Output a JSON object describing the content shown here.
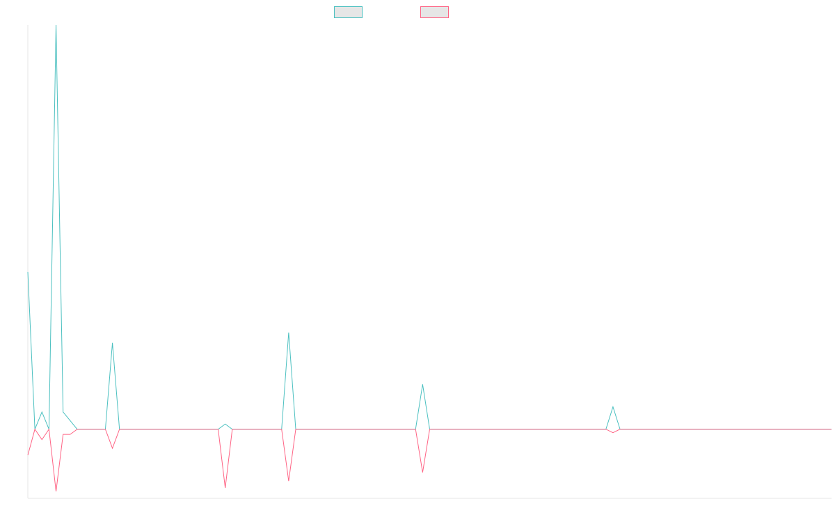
{
  "chart_data": {
    "type": "line",
    "title": "",
    "xlabel": "",
    "ylabel": "",
    "grid": false,
    "tick_labels_visible": false,
    "legend_placement": "top-center",
    "ylim": [
      -0.4,
      2.34
    ],
    "x": [
      0,
      1,
      2,
      3,
      4,
      5,
      6,
      7,
      8,
      9,
      10,
      11,
      12,
      13,
      14,
      15,
      16,
      17,
      18,
      19,
      20,
      21,
      22,
      23,
      24,
      25,
      26,
      27,
      28,
      29,
      30,
      31,
      32,
      33,
      34,
      35,
      36,
      37,
      38,
      39,
      40,
      41,
      42,
      43,
      44,
      45,
      46,
      47,
      48,
      49,
      50,
      51,
      52,
      53,
      54,
      55,
      56,
      57,
      58,
      59,
      60,
      61,
      62,
      63,
      64,
      65,
      66,
      67,
      68,
      69,
      70,
      71,
      72,
      73,
      74,
      75,
      76,
      77,
      78,
      79,
      80,
      81,
      82,
      83,
      84,
      85,
      86,
      87,
      88,
      89,
      90,
      91,
      92,
      93,
      94,
      95,
      96,
      97,
      98,
      99,
      100,
      101,
      102,
      103,
      104,
      105,
      106,
      107,
      108,
      109,
      110,
      111,
      112,
      113,
      114
    ],
    "series": [
      {
        "name": "",
        "color": "#4bc0c0",
        "fill": "#e6e6e6",
        "values": [
          0.91,
          0,
          0.1,
          0,
          2.34,
          0.1,
          0.05,
          0,
          0,
          0,
          0,
          0,
          0.5,
          0,
          0,
          0,
          0,
          0,
          0,
          0,
          0,
          0,
          0,
          0,
          0,
          0,
          0,
          0,
          0.03,
          0,
          0,
          0,
          0,
          0,
          0,
          0,
          0,
          0.56,
          0,
          0,
          0,
          0,
          0,
          0,
          0,
          0,
          0,
          0,
          0,
          0,
          0,
          0,
          0,
          0,
          0,
          0,
          0.26,
          0,
          0,
          0,
          0,
          0,
          0,
          0,
          0,
          0,
          0,
          0,
          0,
          0,
          0,
          0,
          0,
          0,
          0,
          0,
          0,
          0,
          0,
          0,
          0,
          0,
          0,
          0.13,
          0,
          0,
          0,
          0,
          0,
          0,
          0,
          0,
          0,
          0,
          0,
          0,
          0,
          0,
          0,
          0,
          0,
          0,
          0,
          0,
          0,
          0,
          0,
          0,
          0,
          0,
          0,
          0,
          0,
          0,
          0
        ]
      },
      {
        "name": "",
        "color": "#ff6384",
        "fill": "#e6e6e6",
        "values": [
          -0.15,
          0,
          -0.06,
          0,
          -0.36,
          -0.03,
          -0.03,
          0,
          0,
          0,
          0,
          0,
          -0.11,
          0,
          0,
          0,
          0,
          0,
          0,
          0,
          0,
          0,
          0,
          0,
          0,
          0,
          0,
          0,
          -0.34,
          0,
          0,
          0,
          0,
          0,
          0,
          0,
          0,
          -0.3,
          0,
          0,
          0,
          0,
          0,
          0,
          0,
          0,
          0,
          0,
          0,
          0,
          0,
          0,
          0,
          0,
          0,
          0,
          -0.25,
          0,
          0,
          0,
          0,
          0,
          0,
          0,
          0,
          0,
          0,
          0,
          0,
          0,
          0,
          0,
          0,
          0,
          0,
          0,
          0,
          0,
          0,
          0,
          0,
          0,
          0,
          -0.02,
          0,
          0,
          0,
          0,
          0,
          0,
          0,
          0,
          0,
          0,
          0,
          0,
          0,
          0,
          0,
          0,
          0,
          0,
          0,
          0,
          0,
          0,
          0,
          0,
          0,
          0,
          0,
          0,
          0,
          0,
          0
        ]
      }
    ]
  },
  "colors": {
    "axis": "#e6e6e6",
    "zero_line": "#999999"
  }
}
